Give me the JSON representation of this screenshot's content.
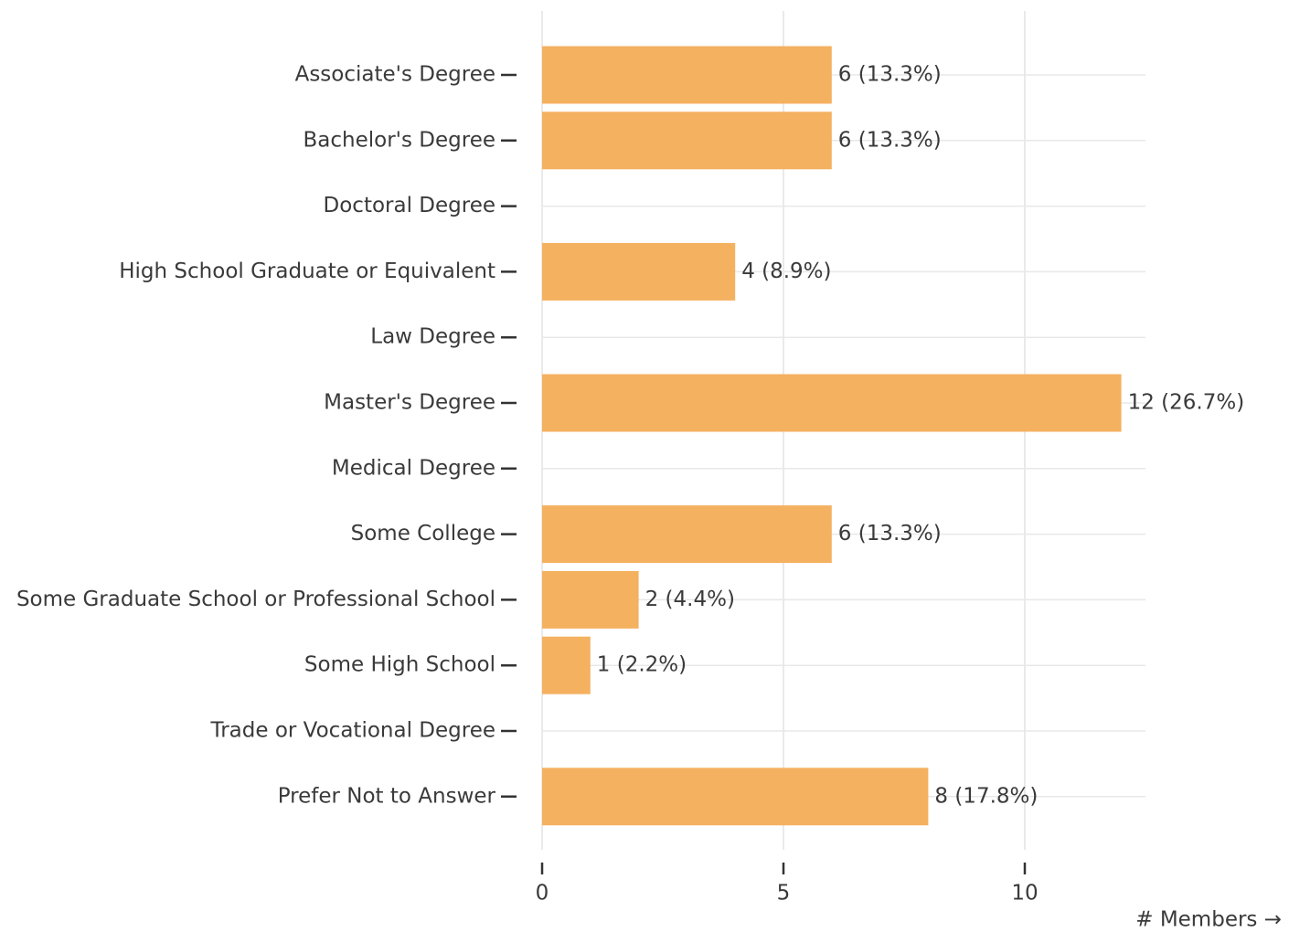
{
  "chart_data": {
    "type": "bar",
    "orientation": "horizontal",
    "categories": [
      "Associate's Degree",
      "Bachelor's Degree",
      "Doctoral Degree",
      "High School Graduate or Equivalent",
      "Law Degree",
      "Master's Degree",
      "Medical Degree",
      "Some College",
      "Some Graduate School or Professional School",
      "Some High School",
      "Trade or Vocational Degree",
      "Prefer Not to Answer"
    ],
    "values": [
      6,
      6,
      0,
      4,
      0,
      12,
      0,
      6,
      2,
      1,
      0,
      8
    ],
    "value_labels": [
      "6 (13.3%)",
      "6 (13.3%)",
      null,
      "4 (8.9%)",
      null,
      "12 (26.7%)",
      null,
      "6 (13.3%)",
      "2 (4.4%)",
      "1 (2.2%)",
      null,
      "8 (17.8%)"
    ],
    "color": "#f4b160",
    "xlabel": "# Members →",
    "xlim": [
      0,
      12.5
    ],
    "xticks": [
      0,
      5,
      10
    ],
    "grid": true
  }
}
